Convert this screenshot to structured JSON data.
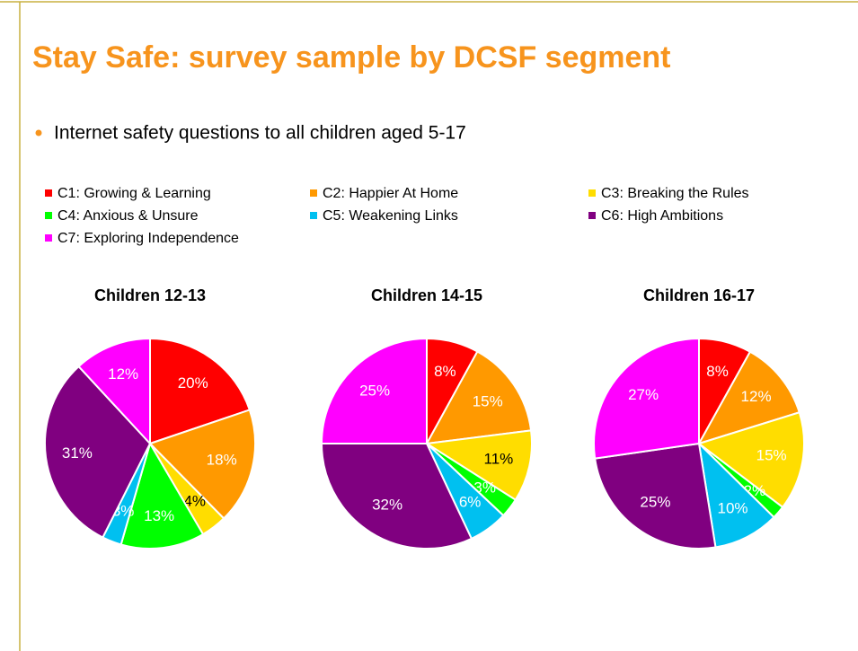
{
  "title": "Stay Safe: survey sample by DCSF segment",
  "bullet": "Internet safety questions to all children aged 5-17",
  "legend": {
    "labels": [
      "C1: Growing & Learning",
      "C2: Happier At Home",
      "C3: Breaking the Rules",
      "C4: Anxious & Unsure",
      "C5: Weakening Links",
      "C6: High Ambitions",
      "C7: Exploring Independence"
    ],
    "colors": [
      "#ff0000",
      "#ff9900",
      "#ffdd00",
      "#00ff00",
      "#00c0f0",
      "#800080",
      "#ff00ff"
    ]
  },
  "chart_data": [
    {
      "type": "pie",
      "title": "Children 12-13",
      "values": [
        20,
        18,
        4,
        13,
        3,
        31,
        12
      ],
      "value_labels": [
        "20%",
        "18%",
        "4%",
        "13%",
        "3%",
        "31%",
        "12%"
      ]
    },
    {
      "type": "pie",
      "title": "Children 14-15",
      "values": [
        8,
        15,
        11,
        3,
        6,
        32,
        25
      ],
      "value_labels": [
        "8%",
        "15%",
        "11%",
        "3%",
        "6%",
        "32%",
        "25%"
      ]
    },
    {
      "type": "pie",
      "title": "Children 16-17",
      "values": [
        8,
        12,
        15,
        2,
        10,
        25,
        27
      ],
      "value_labels": [
        "8%",
        "12%",
        "15%",
        "2%",
        "10%",
        "25%",
        "27%"
      ]
    }
  ]
}
